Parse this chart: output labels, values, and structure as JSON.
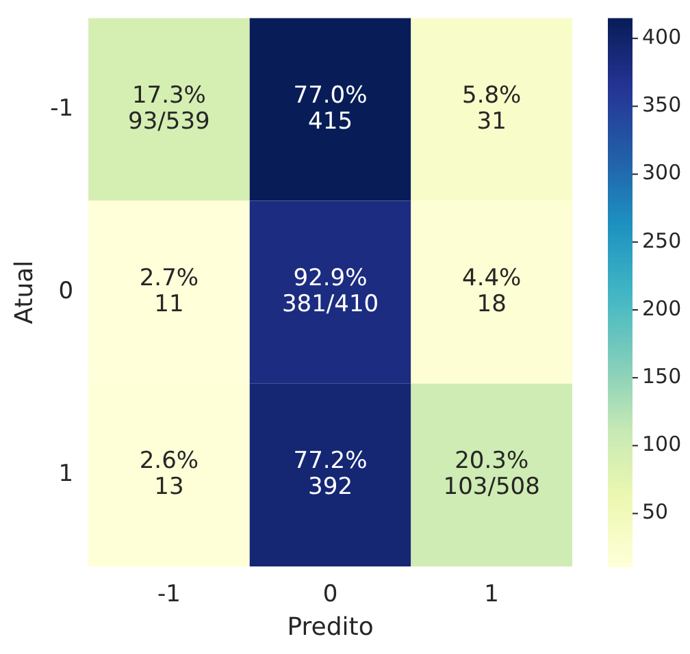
{
  "chart_data": {
    "type": "heatmap",
    "xlabel": "Predito",
    "ylabel": "Atual",
    "categories": [
      "-1",
      "0",
      "1"
    ],
    "y_categories": [
      "-1",
      "0",
      "1"
    ],
    "cells": [
      [
        93,
        415,
        31
      ],
      [
        11,
        381,
        18
      ],
      [
        13,
        392,
        103
      ]
    ],
    "cell_labels": [
      [
        "17.3%\n93/539",
        "77.0%\n415",
        "5.8%\n31"
      ],
      [
        "2.7%\n11",
        "92.9%\n381/410",
        "4.4%\n18"
      ],
      [
        "2.6%\n13",
        "77.2%\n392",
        "20.3%\n103/508"
      ]
    ],
    "clim": [
      11,
      415
    ],
    "cticks": [
      50,
      100,
      150,
      200,
      250,
      300,
      350,
      400
    ]
  }
}
